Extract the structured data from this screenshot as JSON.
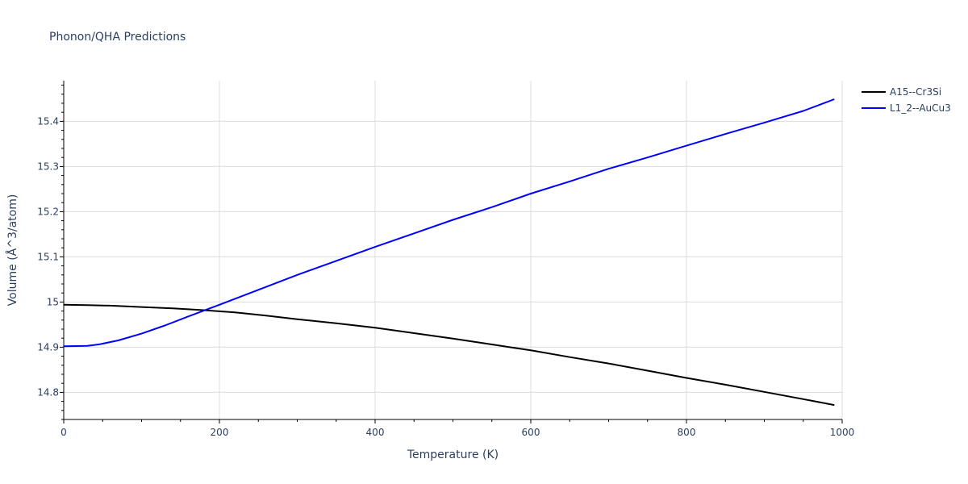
{
  "chart_data": {
    "type": "line",
    "title": "Phonon/QHA Predictions",
    "xlabel": "Temperature (K)",
    "ylabel": "Volume (Å^3/atom)",
    "xlim": [
      0,
      1000
    ],
    "ylim": [
      14.74,
      15.49
    ],
    "xticks": [
      0,
      200,
      400,
      600,
      800,
      1000
    ],
    "xtick_labels": [
      "0",
      "200",
      "400",
      "600",
      "800",
      "1000"
    ],
    "yticks": [
      14.8,
      14.9,
      15.0,
      15.1,
      15.2,
      15.3,
      15.4
    ],
    "ytick_labels": [
      "14.8",
      "14.9",
      "15",
      "15.1",
      "15.2",
      "15.3",
      "15.4"
    ],
    "grid": true,
    "legend_position": "top-right",
    "series": [
      {
        "name": "A15--Cr3Si",
        "color": "#000000",
        "x": [
          0,
          30,
          60,
          100,
          140,
          180,
          220,
          260,
          300,
          350,
          400,
          450,
          500,
          550,
          600,
          650,
          700,
          750,
          800,
          850,
          900,
          950,
          990
        ],
        "y": [
          14.994,
          14.993,
          14.992,
          14.989,
          14.986,
          14.982,
          14.977,
          14.97,
          14.962,
          14.953,
          14.943,
          14.931,
          14.919,
          14.906,
          14.893,
          14.878,
          14.864,
          14.848,
          14.832,
          14.817,
          14.801,
          14.785,
          14.772
        ]
      },
      {
        "name": "L1_2--AuCu3",
        "color": "#0000ff",
        "x": [
          0,
          30,
          45,
          70,
          100,
          130,
          160,
          200,
          250,
          300,
          350,
          400,
          450,
          500,
          550,
          600,
          650,
          700,
          750,
          800,
          850,
          900,
          950,
          990
        ],
        "y": [
          14.902,
          14.903,
          14.906,
          14.915,
          14.93,
          14.948,
          14.968,
          14.994,
          15.027,
          15.06,
          15.091,
          15.122,
          15.152,
          15.182,
          15.21,
          15.24,
          15.267,
          15.295,
          15.32,
          15.346,
          15.372,
          15.397,
          15.423,
          15.449
        ]
      }
    ]
  }
}
